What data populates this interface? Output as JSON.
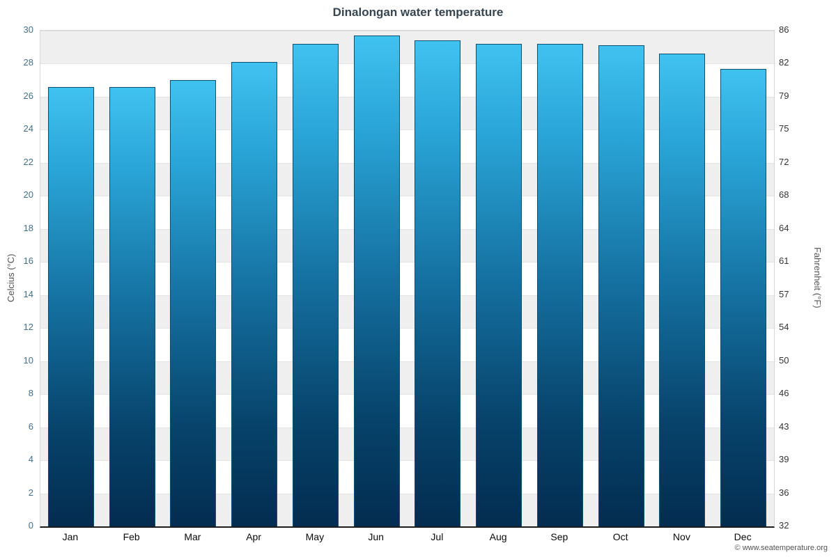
{
  "title": "Dinalongan water temperature",
  "footer": {
    "text": "© www.seatemperature.org"
  },
  "chart_data": {
    "type": "bar",
    "title": "Dinalongan water temperature",
    "categories": [
      "Jan",
      "Feb",
      "Mar",
      "Apr",
      "May",
      "Jun",
      "Jul",
      "Aug",
      "Sep",
      "Oct",
      "Nov",
      "Dec"
    ],
    "values": [
      26.6,
      26.6,
      27.0,
      28.1,
      29.2,
      29.7,
      29.4,
      29.2,
      29.2,
      29.1,
      28.6,
      27.7
    ],
    "unit": "°C",
    "ylabel_left": "Celcius (°C)",
    "ylabel_right": "Fahrenheit (°F)",
    "ylim": [
      0,
      30
    ],
    "y_ticks_celsius": [
      0,
      2,
      4,
      6,
      8,
      10,
      12,
      14,
      16,
      18,
      20,
      22,
      24,
      26,
      28,
      30
    ],
    "y_ticks_fahrenheit": [
      32,
      36,
      39,
      43,
      46,
      50,
      54,
      57,
      61,
      64,
      68,
      72,
      75,
      79,
      82,
      86
    ],
    "grid": "striped-bands",
    "legend": "none",
    "stripe_color": "#efefef",
    "bar_gradient_top": "#40c2f0",
    "bar_gradient_bottom": "#032c50",
    "bar_border_color": "#0d4f74",
    "title_color": "#36454f",
    "left_tick_color": "#41708f",
    "right_tick_color": "#333333"
  }
}
